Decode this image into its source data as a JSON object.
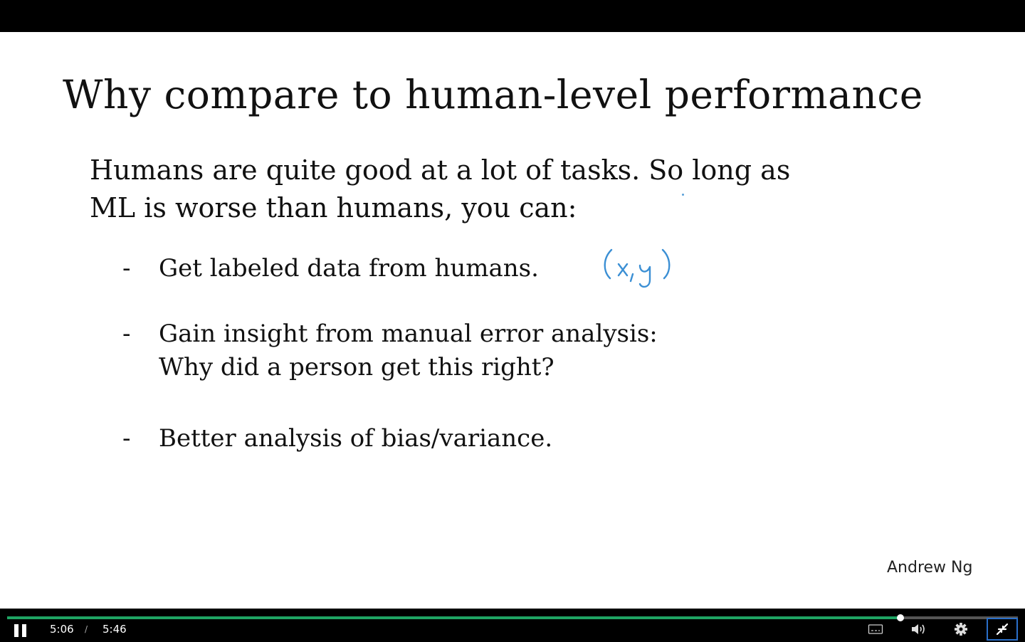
{
  "slide": {
    "title": "Why compare to human-level performance",
    "intro_lines": [
      "Humans are quite good at a lot of tasks. So long as",
      "ML is worse than humans, you can:"
    ],
    "bullets": [
      {
        "dash": "-",
        "lines": [
          "Get labeled data from humans."
        ]
      },
      {
        "dash": "-",
        "lines": [
          "Gain insight from manual error analysis:",
          "Why did a person get this right?"
        ]
      },
      {
        "dash": "-",
        "lines": [
          "Better analysis of bias/variance."
        ]
      }
    ],
    "annotation": "(x,y)",
    "author": "Andrew Ng"
  },
  "player": {
    "current_time": "5:06",
    "separator": "/",
    "duration": "5:46",
    "progress_fraction": 0.884,
    "accent_color": "#1fa463",
    "icons": [
      "pause-icon",
      "captions-icon",
      "volume-icon",
      "gear-icon",
      "exit-fullscreen-icon"
    ]
  }
}
